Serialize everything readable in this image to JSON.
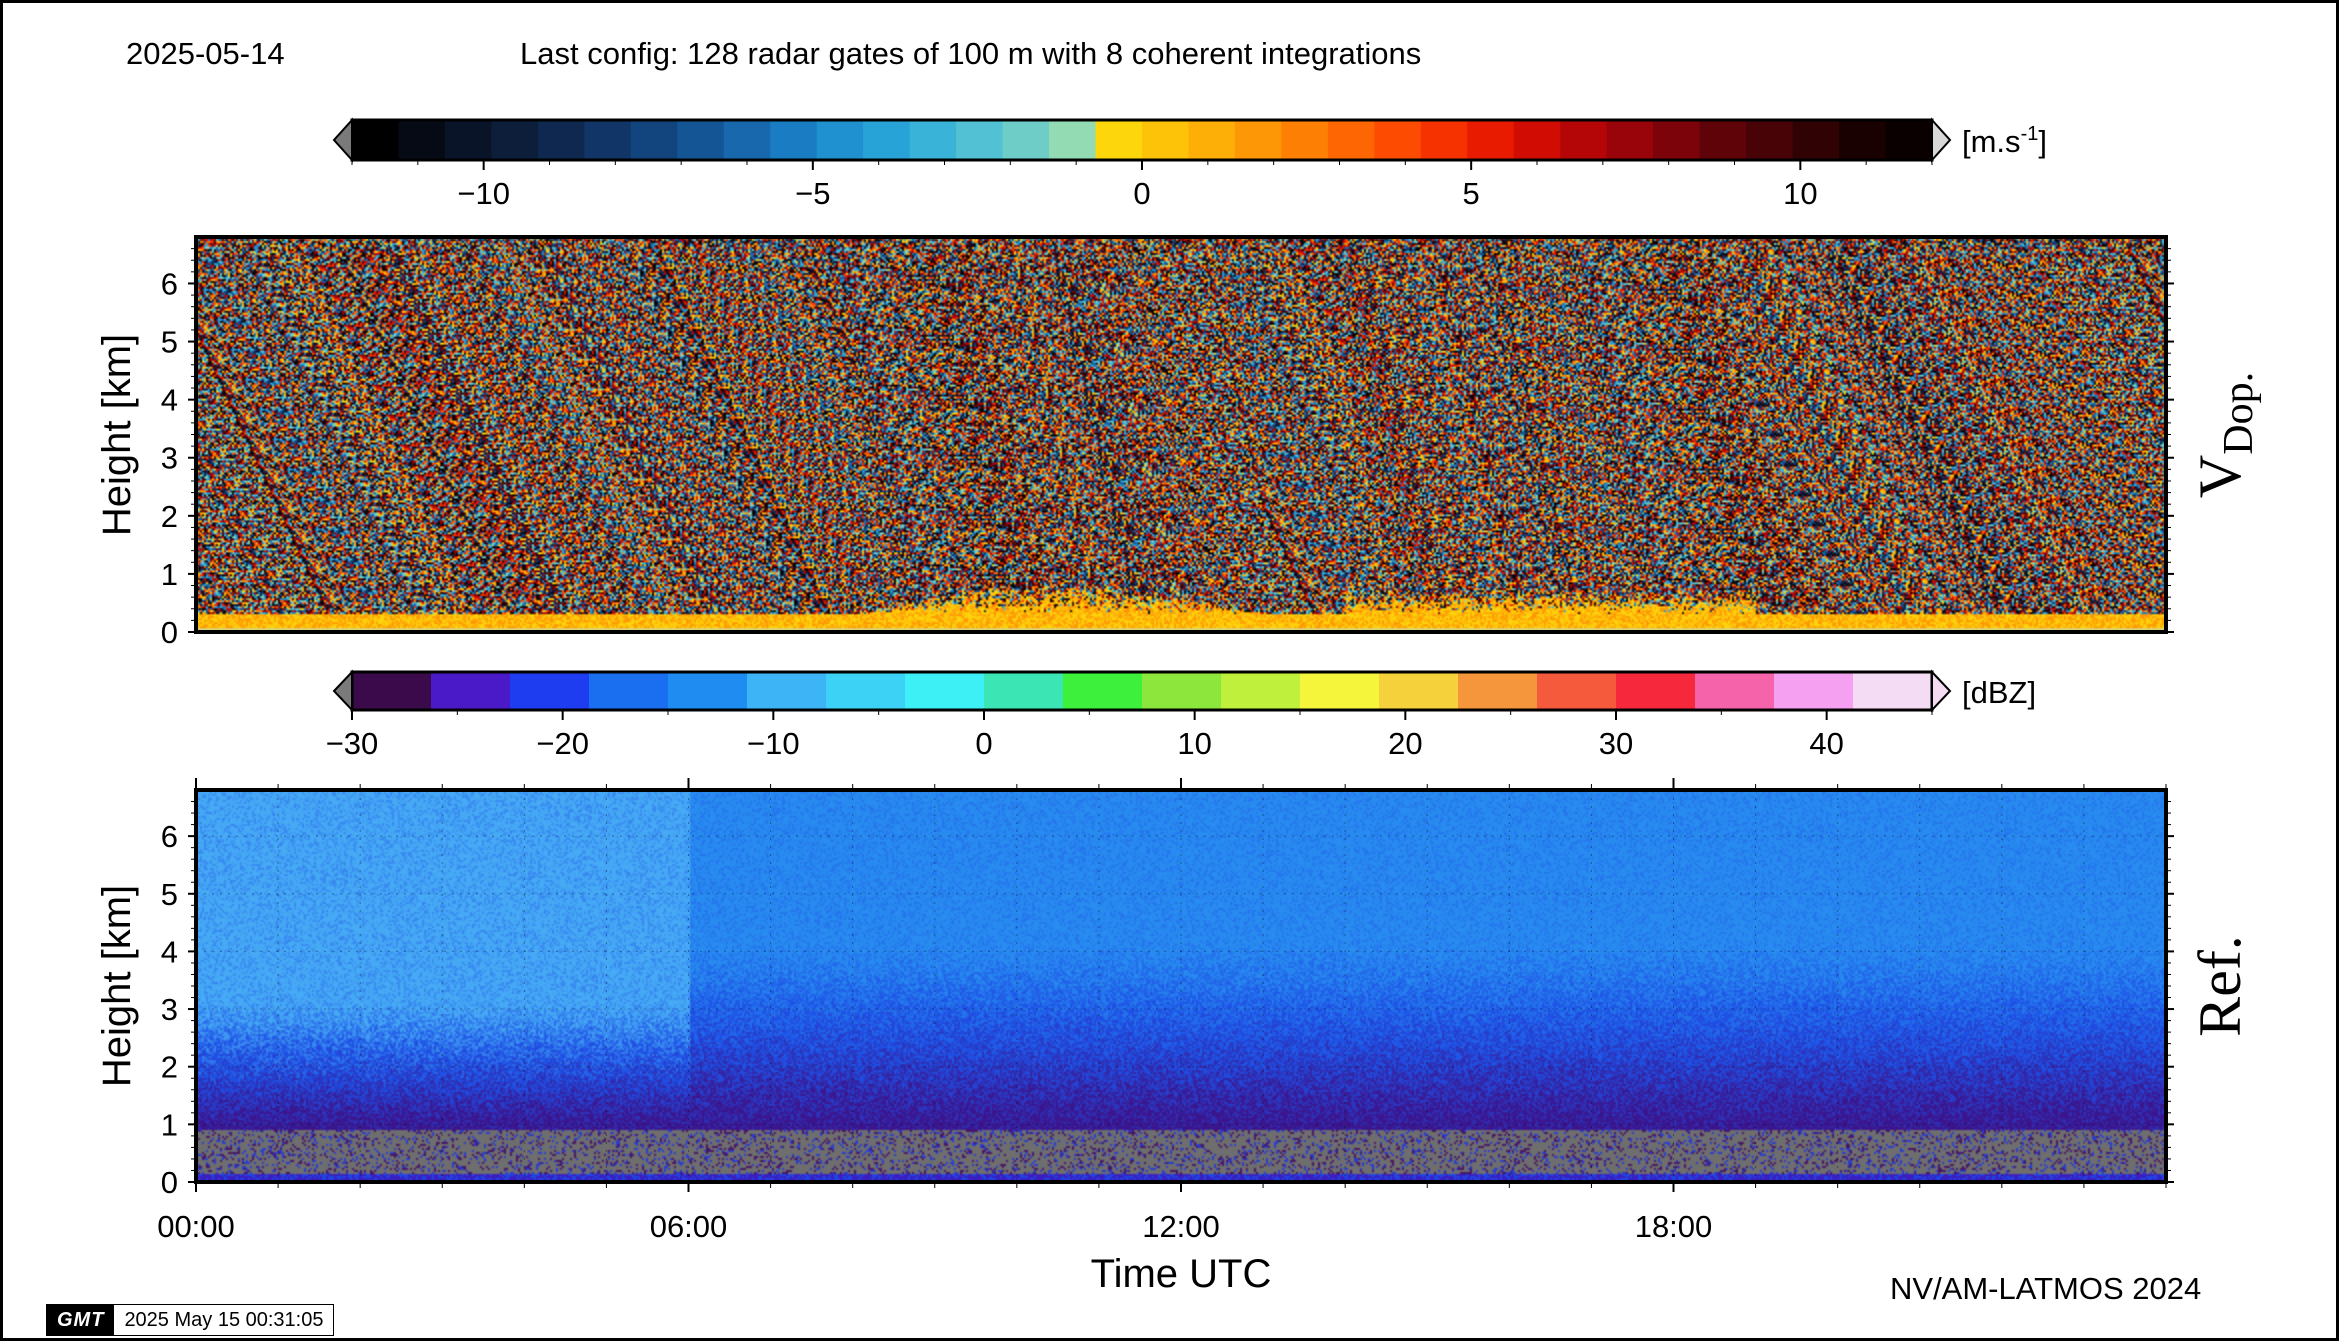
{
  "header": {
    "date": "2025-05-14",
    "config": "Last config: 128 radar gates of 100 m with 8 coherent integrations"
  },
  "footer": {
    "credit": "NV/AM-LATMOS 2024",
    "gmt_logo": "GMT",
    "timestamp": "2025 May 15 00:31:05"
  },
  "chart_data": [
    {
      "type": "heatmap",
      "name": "doppler-velocity",
      "side_label": "V",
      "side_label_sub": "Dop.",
      "ylabel": "Height [km]",
      "xlabel": "",
      "ylim": [
        0,
        6.8
      ],
      "yticks": [
        0,
        1,
        2,
        3,
        4,
        5,
        6
      ],
      "xlim": [
        0,
        24
      ],
      "colorbar": {
        "unit": "[m.s-1]",
        "unit_base": "[m.s",
        "unit_exp": "-1",
        "unit_close": "]",
        "range": [
          -12,
          12
        ],
        "ticks": [
          -10,
          -5,
          0,
          5,
          10
        ],
        "tick_labels": [
          "−10",
          "−5",
          "0",
          "5",
          "10"
        ],
        "colors": [
          "#000000",
          "#050a14",
          "#0a1428",
          "#0d1e3a",
          "#0f2850",
          "#113566",
          "#12447e",
          "#145596",
          "#1768ad",
          "#1a7cc2",
          "#1f90d0",
          "#28a3d8",
          "#3ab3d9",
          "#52c1d4",
          "#6fcdc7",
          "#92dbb3",
          "#fdd60b",
          "#fdc309",
          "#fdae07",
          "#fd9705",
          "#fd7f04",
          "#fd6603",
          "#fd4c02",
          "#f73201",
          "#e81a00",
          "#d10c03",
          "#b50607",
          "#980409",
          "#7c0309",
          "#600308",
          "#470306",
          "#300203",
          "#1a0101",
          "#0a0000"
        ]
      },
      "description_values": "mostly noise above ~0.3 km; near-surface layer ~0 to 2 m/s"
    },
    {
      "type": "heatmap",
      "name": "reflectivity",
      "side_label": "Ref.",
      "ylabel": "Height [km]",
      "xlabel": "Time UTC",
      "ylim": [
        0,
        6.8
      ],
      "yticks": [
        0,
        1,
        2,
        3,
        4,
        5,
        6
      ],
      "xlim": [
        0,
        24
      ],
      "xticks": [
        0,
        6,
        12,
        18
      ],
      "xtick_labels": [
        "00:00",
        "06:00",
        "12:00",
        "18:00"
      ],
      "colorbar": {
        "unit": "[dBZ]",
        "range": [
          -30,
          45
        ],
        "ticks": [
          -30,
          -20,
          -10,
          0,
          10,
          20,
          30,
          40
        ],
        "tick_labels": [
          "−30",
          "−20",
          "−10",
          "0",
          "10",
          "20",
          "30",
          "40"
        ],
        "colors": [
          "#3a0a4a",
          "#4a1ac8",
          "#1e3cf0",
          "#1a6ef0",
          "#1e8cf0",
          "#3cb4f5",
          "#3cd2f5",
          "#3cf0f5",
          "#3ce6b4",
          "#3cf03c",
          "#8ce63c",
          "#bef03c",
          "#f5f53c",
          "#f5d23c",
          "#f5963c",
          "#f55a3c",
          "#f5283c",
          "#f564aa",
          "#f5a0f0",
          "#f5dcf5"
        ]
      }
    }
  ],
  "colors": {
    "noise_gray": "#6e6e6e"
  }
}
